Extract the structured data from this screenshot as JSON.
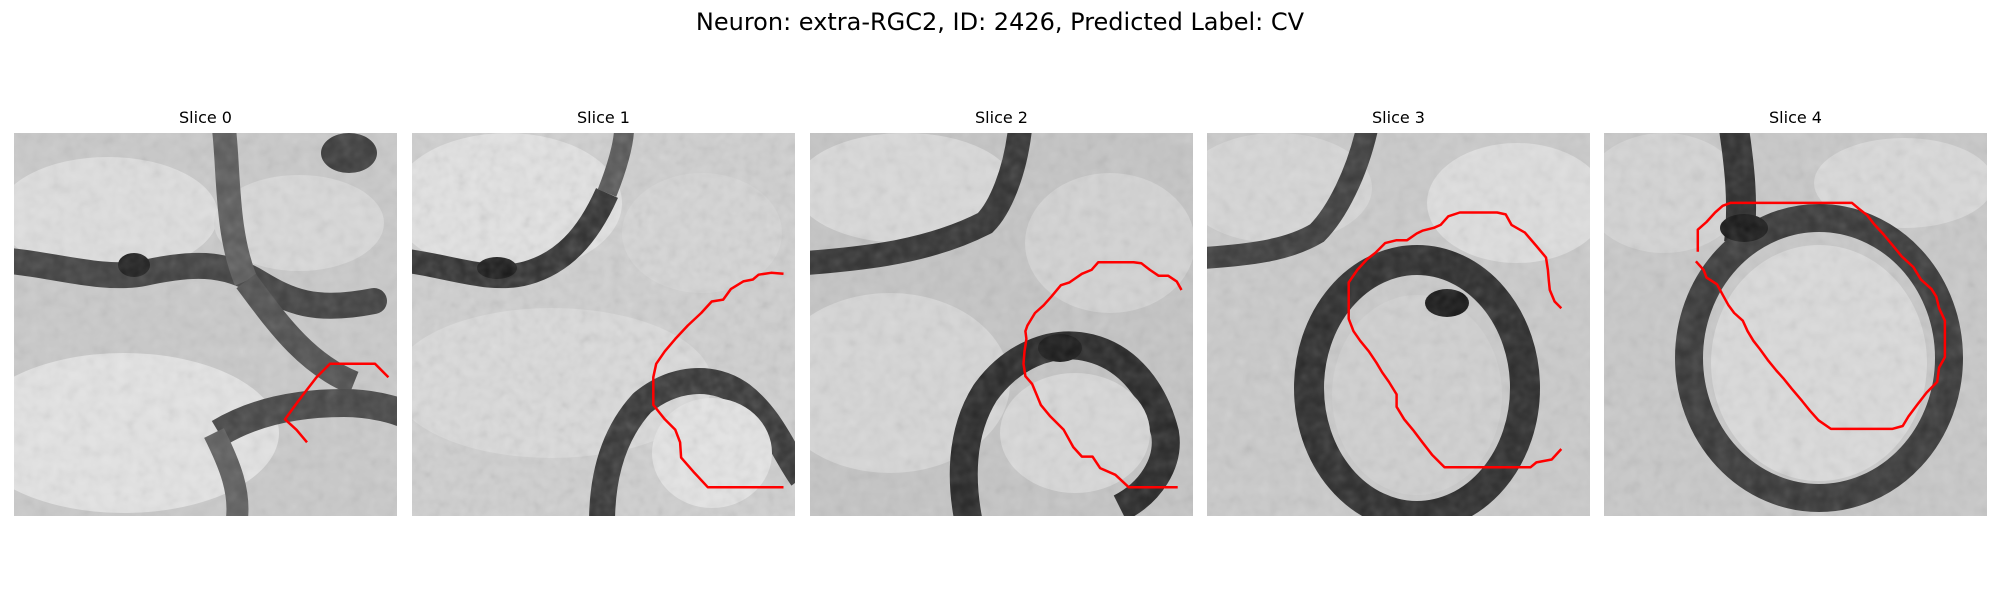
{
  "figure": {
    "title": "Neuron: extra-RGC2, ID: 2426, Predicted Label: CV"
  },
  "contour_color": "#ff0000",
  "panels": [
    {
      "title": "Slice 0",
      "image": "grayscale-microscopy-patch-with-dark-membrane-boundaries",
      "contour": [
        [
          30.6,
          32.3
        ],
        [
          29.5,
          31.0
        ],
        [
          28.3,
          29.9
        ],
        [
          29.4,
          28.4
        ],
        [
          30.3,
          27.2
        ],
        [
          31.6,
          25.5
        ],
        [
          33.0,
          24.1
        ],
        [
          35.5,
          24.1
        ],
        [
          37.7,
          24.1
        ],
        [
          39.1,
          25.5
        ]
      ]
    },
    {
      "title": "Slice 1",
      "image": "grayscale-microscopy-patch-with-dark-membrane-boundaries",
      "contour": [
        [
          38.8,
          37.0
        ],
        [
          36.2,
          37.0
        ],
        [
          33.4,
          37.0
        ],
        [
          30.9,
          37.0
        ],
        [
          29.5,
          35.5
        ],
        [
          28.1,
          33.9
        ],
        [
          28.0,
          32.3
        ],
        [
          27.5,
          31.0
        ],
        [
          26.4,
          29.9
        ],
        [
          25.2,
          28.4
        ],
        [
          25.2,
          27.2
        ],
        [
          25.2,
          25.5
        ],
        [
          25.5,
          24.1
        ],
        [
          26.4,
          22.8
        ],
        [
          27.5,
          21.5
        ],
        [
          28.8,
          20.1
        ],
        [
          30.2,
          18.8
        ],
        [
          31.3,
          17.6
        ],
        [
          32.5,
          17.4
        ],
        [
          33.3,
          16.3
        ],
        [
          34.6,
          15.5
        ],
        [
          35.6,
          15.3
        ],
        [
          36.2,
          14.8
        ],
        [
          37.5,
          14.6
        ],
        [
          38.8,
          14.7
        ]
      ]
    },
    {
      "title": "Slice 2",
      "image": "grayscale-microscopy-patch-with-dark-membrane-boundaries",
      "contour": [
        [
          38.4,
          37.0
        ],
        [
          35.8,
          37.0
        ],
        [
          33.3,
          37.0
        ],
        [
          31.9,
          35.7
        ],
        [
          30.3,
          35.0
        ],
        [
          29.5,
          33.8
        ],
        [
          28.4,
          33.8
        ],
        [
          27.5,
          32.8
        ],
        [
          26.5,
          31.0
        ],
        [
          25.1,
          29.6
        ],
        [
          24.1,
          28.4
        ],
        [
          23.7,
          27.4
        ],
        [
          23.2,
          26.2
        ],
        [
          22.5,
          25.4
        ],
        [
          22.3,
          24.1
        ],
        [
          22.4,
          22.8
        ],
        [
          22.6,
          21.5
        ],
        [
          22.5,
          20.7
        ],
        [
          22.7,
          20.1
        ],
        [
          23.5,
          18.8
        ],
        [
          24.4,
          18.0
        ],
        [
          25.2,
          17.1
        ],
        [
          26.2,
          15.9
        ],
        [
          27.1,
          15.6
        ],
        [
          28.4,
          14.7
        ],
        [
          29.4,
          14.3
        ],
        [
          30.1,
          13.5
        ],
        [
          31.2,
          13.5
        ],
        [
          32.5,
          13.5
        ],
        [
          33.8,
          13.5
        ],
        [
          34.6,
          13.6
        ],
        [
          35.5,
          14.3
        ],
        [
          36.4,
          14.9
        ],
        [
          37.4,
          14.9
        ],
        [
          38.3,
          15.5
        ],
        [
          38.8,
          16.4
        ]
      ]
    },
    {
      "title": "Slice 3",
      "image": "grayscale-microscopy-patch-with-dark-membrane-boundaries",
      "contour": [
        [
          37.0,
          33.0
        ],
        [
          36.0,
          34.1
        ],
        [
          34.4,
          34.4
        ],
        [
          33.8,
          34.9
        ],
        [
          32.5,
          34.9
        ],
        [
          31.2,
          34.9
        ],
        [
          29.9,
          34.9
        ],
        [
          28.6,
          34.9
        ],
        [
          27.3,
          34.9
        ],
        [
          26.0,
          34.9
        ],
        [
          24.8,
          34.9
        ],
        [
          23.5,
          33.6
        ],
        [
          22.5,
          32.3
        ],
        [
          21.5,
          31.0
        ],
        [
          20.6,
          29.9
        ],
        [
          19.8,
          28.6
        ],
        [
          19.8,
          27.3
        ],
        [
          19.0,
          26.0
        ],
        [
          18.3,
          25.0
        ],
        [
          17.7,
          24.0
        ],
        [
          16.9,
          22.8
        ],
        [
          16.0,
          21.7
        ],
        [
          15.3,
          20.7
        ],
        [
          14.8,
          19.4
        ],
        [
          14.8,
          18.2
        ],
        [
          14.8,
          16.9
        ],
        [
          14.8,
          15.6
        ],
        [
          15.7,
          14.3
        ],
        [
          16.7,
          13.2
        ],
        [
          17.6,
          12.5
        ],
        [
          18.6,
          11.5
        ],
        [
          19.8,
          11.2
        ],
        [
          20.9,
          11.2
        ],
        [
          21.9,
          10.5
        ],
        [
          22.5,
          10.2
        ],
        [
          23.7,
          9.9
        ],
        [
          24.4,
          9.6
        ],
        [
          25.2,
          8.7
        ],
        [
          26.4,
          8.3
        ],
        [
          27.7,
          8.3
        ],
        [
          29.0,
          8.3
        ],
        [
          30.3,
          8.3
        ],
        [
          31.2,
          8.5
        ],
        [
          31.8,
          9.6
        ],
        [
          33.2,
          10.4
        ],
        [
          34.4,
          11.8
        ],
        [
          35.4,
          13.0
        ],
        [
          35.6,
          14.3
        ],
        [
          35.7,
          15.4
        ],
        [
          35.8,
          16.4
        ],
        [
          36.3,
          17.6
        ],
        [
          37.0,
          18.3
        ]
      ]
    },
    {
      "title": "Slice 4",
      "image": "grayscale-microscopy-patch-with-dark-membrane-boundaries",
      "contour": [
        [
          9.6,
          13.4
        ],
        [
          10.4,
          14.3
        ],
        [
          10.7,
          15.1
        ],
        [
          11.8,
          15.8
        ],
        [
          12.4,
          16.9
        ],
        [
          13.0,
          18.0
        ],
        [
          13.6,
          18.8
        ],
        [
          14.5,
          19.6
        ],
        [
          15.0,
          20.7
        ],
        [
          15.6,
          21.7
        ],
        [
          16.3,
          22.6
        ],
        [
          17.1,
          23.7
        ],
        [
          18.0,
          24.8
        ],
        [
          18.8,
          25.7
        ],
        [
          19.6,
          26.7
        ],
        [
          20.7,
          28.0
        ],
        [
          21.5,
          29.0
        ],
        [
          22.4,
          30.0
        ],
        [
          23.7,
          30.9
        ],
        [
          25.0,
          30.9
        ],
        [
          26.3,
          30.9
        ],
        [
          27.6,
          30.9
        ],
        [
          28.9,
          30.9
        ],
        [
          30.1,
          30.9
        ],
        [
          31.2,
          30.6
        ],
        [
          31.8,
          29.6
        ],
        [
          32.7,
          28.4
        ],
        [
          33.7,
          27.1
        ],
        [
          34.8,
          26.0
        ],
        [
          35.0,
          24.5
        ],
        [
          35.6,
          23.4
        ],
        [
          35.6,
          22.2
        ],
        [
          35.6,
          20.9
        ],
        [
          35.6,
          19.6
        ],
        [
          35.0,
          18.3
        ],
        [
          34.7,
          17.1
        ],
        [
          34.2,
          16.3
        ],
        [
          33.1,
          15.3
        ],
        [
          32.3,
          14.0
        ],
        [
          31.1,
          12.9
        ],
        [
          30.2,
          11.8
        ],
        [
          29.2,
          10.6
        ],
        [
          28.2,
          9.5
        ],
        [
          27.5,
          8.6
        ],
        [
          26.6,
          7.9
        ],
        [
          25.9,
          7.3
        ],
        [
          24.6,
          7.3
        ],
        [
          23.3,
          7.3
        ],
        [
          22.1,
          7.3
        ],
        [
          20.8,
          7.3
        ],
        [
          19.5,
          7.3
        ],
        [
          18.2,
          7.3
        ],
        [
          17.0,
          7.3
        ],
        [
          15.7,
          7.3
        ],
        [
          14.4,
          7.3
        ],
        [
          13.2,
          7.3
        ],
        [
          12.4,
          7.6
        ],
        [
          11.6,
          8.3
        ],
        [
          10.7,
          9.3
        ],
        [
          9.8,
          10.1
        ],
        [
          9.8,
          11.2
        ],
        [
          9.8,
          12.4
        ]
      ]
    }
  ]
}
